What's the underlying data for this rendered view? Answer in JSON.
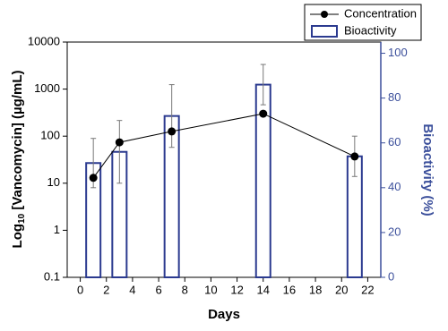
{
  "chart_data": {
    "type": "bar",
    "xlabel": "Days",
    "ylabel_parts": [
      "Log",
      "10",
      " [Vancomycin] (µg/mL)"
    ],
    "y2label": "Bioactivity (%)",
    "xlim": [
      -1,
      23
    ],
    "xticks": [
      0,
      2,
      4,
      6,
      8,
      10,
      12,
      14,
      16,
      18,
      20,
      22
    ],
    "ylim": [
      0.1,
      10000
    ],
    "yticks": [
      0.1,
      1,
      10,
      100,
      1000,
      10000
    ],
    "log_y": true,
    "y2lim": [
      0,
      105
    ],
    "y2ticks": [
      0,
      20,
      40,
      60,
      80,
      100
    ],
    "x": [
      1,
      3,
      7,
      14,
      21
    ],
    "legend": "top-right",
    "series": [
      {
        "name": "Concentration",
        "type": "line",
        "color": "#000000",
        "values": [
          13,
          74,
          126,
          300,
          37
        ]
      },
      {
        "name": "Bioactivity",
        "type": "bar",
        "axis": "y2",
        "color": "#2b3a8f",
        "values": [
          51,
          56,
          72,
          86,
          54
        ],
        "errors": [
          11,
          14,
          14,
          9,
          9
        ]
      }
    ]
  }
}
